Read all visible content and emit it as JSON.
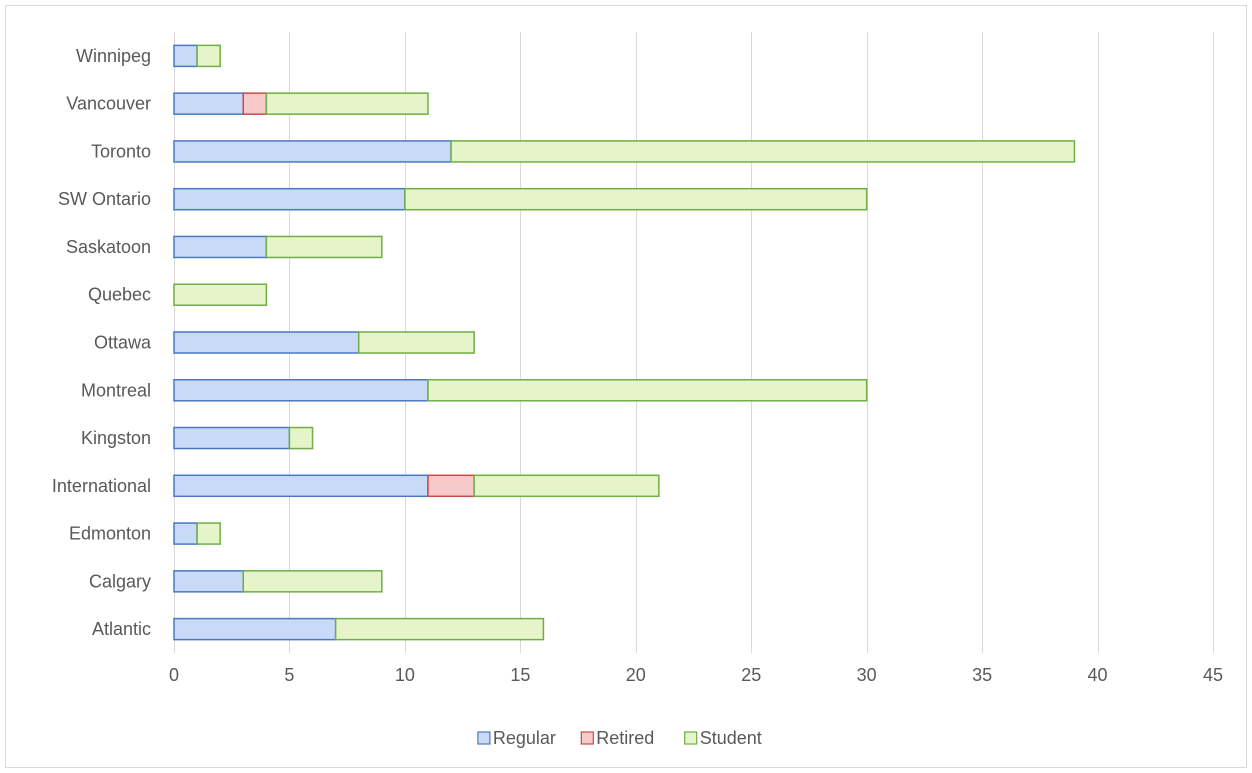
{
  "chart_data": {
    "type": "bar",
    "orientation": "horizontal",
    "stacked": true,
    "categories": [
      "Atlantic",
      "Calgary",
      "Edmonton",
      "International",
      "Kingston",
      "Montreal",
      "Ottawa",
      "Quebec",
      "Saskatoon",
      "SW Ontario",
      "Toronto",
      "Vancouver",
      "Winnipeg"
    ],
    "series": [
      {
        "name": "Regular",
        "values": [
          7,
          3,
          1,
          11,
          5,
          11,
          8,
          0,
          4,
          10,
          12,
          3,
          1
        ],
        "color": "#c9daf8",
        "stroke": "#4a78c2"
      },
      {
        "name": "Retired",
        "values": [
          0,
          0,
          0,
          2,
          0,
          0,
          0,
          0,
          0,
          0,
          0,
          1,
          0
        ],
        "color": "#f8c9c9",
        "stroke": "#c84b4b"
      },
      {
        "name": "Student",
        "values": [
          9,
          6,
          1,
          8,
          1,
          19,
          5,
          4,
          5,
          20,
          27,
          7,
          1
        ],
        "color": "#e6f5c9",
        "stroke": "#70ad47"
      }
    ],
    "xlim": [
      0,
      45
    ],
    "xticks": [
      0,
      5,
      10,
      15,
      20,
      25,
      30,
      35,
      40,
      45
    ],
    "grid": "vertical",
    "legend": "bottom",
    "title": "",
    "xlabel": "",
    "ylabel": ""
  }
}
